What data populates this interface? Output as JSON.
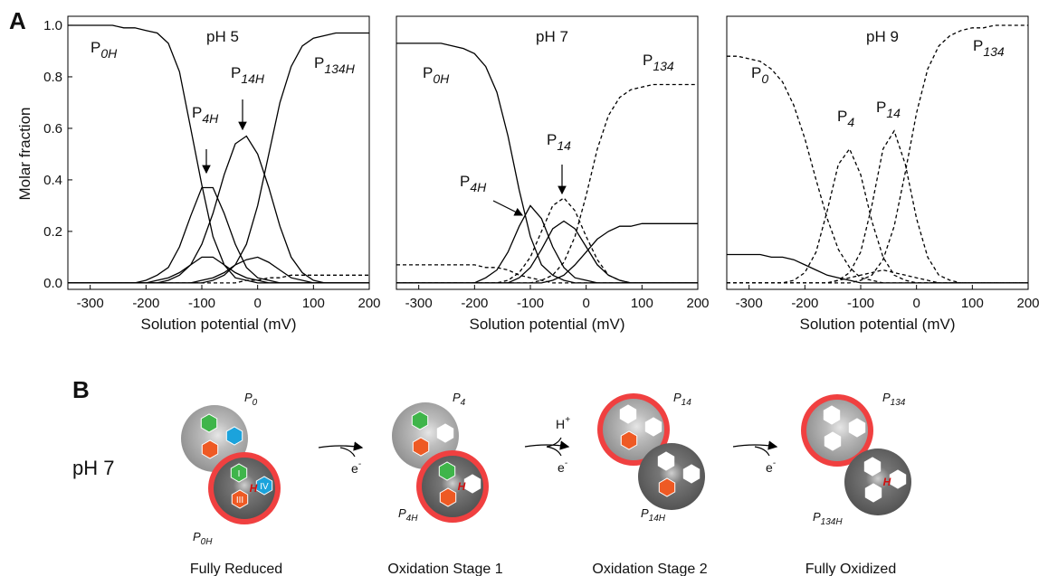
{
  "panel_label": "A",
  "chart_data": [
    {
      "type": "line",
      "title": "pH 5",
      "x_label": "Solution potential (mV)",
      "y_label": "Molar fraction",
      "xlim": [
        -340,
        200
      ],
      "ylim": [
        -0.025,
        1.035
      ],
      "xticks": [
        -300,
        -200,
        -100,
        0,
        100,
        200
      ],
      "yticks": [
        {
          "value": 0,
          "label": "0.0"
        },
        0.2,
        0.4,
        0.6,
        0.8,
        {
          "value": 1,
          "label": "1.0"
        }
      ],
      "x": [
        -340,
        -320,
        -300,
        -280,
        -260,
        -240,
        -220,
        -200,
        -180,
        -160,
        -140,
        -120,
        -100,
        -80,
        -60,
        -40,
        -20,
        0,
        20,
        40,
        60,
        80,
        100,
        120,
        140,
        160,
        180,
        200
      ],
      "series": [
        {
          "name": "P0H",
          "color": "#000",
          "style": "solid",
          "values": [
            1,
            1,
            1,
            1,
            1,
            0.99,
            0.99,
            0.98,
            0.97,
            0.93,
            0.82,
            0.6,
            0.38,
            0.18,
            0.07,
            0.02,
            0.01,
            0,
            0,
            0,
            0,
            0,
            0,
            0,
            0,
            0,
            0,
            0
          ]
        },
        {
          "name": "P4H",
          "color": "#000",
          "style": "solid",
          "values": [
            0,
            0,
            0,
            0,
            0,
            0,
            0,
            0.01,
            0.03,
            0.06,
            0.14,
            0.26,
            0.37,
            0.37,
            0.27,
            0.15,
            0.06,
            0.02,
            0.01,
            0,
            0,
            0,
            0,
            0,
            0,
            0,
            0,
            0
          ]
        },
        {
          "name": "P14H",
          "color": "#000",
          "style": "solid",
          "values": [
            0,
            0,
            0,
            0,
            0,
            0,
            0,
            0,
            0,
            0.01,
            0.03,
            0.07,
            0.15,
            0.27,
            0.42,
            0.54,
            0.57,
            0.5,
            0.37,
            0.22,
            0.1,
            0.04,
            0.01,
            0,
            0,
            0,
            0,
            0
          ]
        },
        {
          "name": "P134H",
          "color": "#000",
          "style": "solid",
          "values": [
            0,
            0,
            0,
            0,
            0,
            0,
            0,
            0,
            0,
            0,
            0,
            0,
            0,
            0.01,
            0.03,
            0.07,
            0.15,
            0.3,
            0.5,
            0.7,
            0.84,
            0.92,
            0.95,
            0.96,
            0.97,
            0.97,
            0.97,
            0.97
          ]
        },
        {
          "color": "#000",
          "style": "solid",
          "values": [
            0,
            0,
            0,
            0,
            0,
            0,
            0,
            0,
            0.01,
            0.02,
            0.04,
            0.07,
            0.1,
            0.1,
            0.07,
            0.04,
            0.02,
            0.01,
            0,
            0,
            0,
            0,
            0,
            0,
            0,
            0,
            0,
            0
          ]
        },
        {
          "color": "#000",
          "style": "solid",
          "values": [
            0,
            0,
            0,
            0,
            0,
            0,
            0,
            0,
            0,
            0,
            0,
            0,
            0.01,
            0.02,
            0.04,
            0.07,
            0.09,
            0.1,
            0.08,
            0.05,
            0.02,
            0.01,
            0,
            0,
            0,
            0,
            0,
            0
          ]
        },
        {
          "color": "#000",
          "style": "dashed",
          "values": [
            0,
            0,
            0,
            0,
            0,
            0,
            0,
            0,
            0,
            0,
            0,
            0,
            0,
            0,
            0,
            0,
            0.01,
            0.01,
            0.02,
            0.02,
            0.03,
            0.03,
            0.03,
            0.03,
            0.03,
            0.03,
            0.03,
            0.03
          ]
        }
      ]
    },
    {
      "type": "line",
      "title": "pH 7",
      "x_label": "Solution potential (mV)",
      "xlim": [
        -340,
        200
      ],
      "ylim": [
        -0.025,
        1.035
      ],
      "xticks": [
        -300,
        -200,
        -100,
        0,
        100,
        200
      ],
      "x": [
        -340,
        -320,
        -300,
        -280,
        -260,
        -240,
        -220,
        -200,
        -180,
        -160,
        -140,
        -120,
        -100,
        -80,
        -60,
        -40,
        -20,
        0,
        20,
        40,
        60,
        80,
        100,
        120,
        140,
        160,
        180,
        200
      ],
      "series": [
        {
          "name": "P0H",
          "color": "#000",
          "style": "solid",
          "values": [
            0.93,
            0.93,
            0.93,
            0.93,
            0.93,
            0.92,
            0.91,
            0.89,
            0.84,
            0.74,
            0.57,
            0.36,
            0.18,
            0.07,
            0.03,
            0.01,
            0,
            0,
            0,
            0,
            0,
            0,
            0,
            0,
            0,
            0,
            0,
            0
          ]
        },
        {
          "name": "P4H",
          "color": "#000",
          "style": "solid",
          "values": [
            0,
            0,
            0,
            0,
            0,
            0,
            0,
            0,
            0.02,
            0.05,
            0.12,
            0.22,
            0.3,
            0.25,
            0.14,
            0.06,
            0.02,
            0.01,
            0,
            0,
            0,
            0,
            0,
            0,
            0,
            0,
            0,
            0
          ]
        },
        {
          "name": "P14",
          "color": "#000",
          "style": "dashed",
          "values": [
            0,
            0,
            0,
            0,
            0,
            0,
            0,
            0,
            0,
            0,
            0.01,
            0.04,
            0.1,
            0.2,
            0.3,
            0.33,
            0.28,
            0.18,
            0.09,
            0.03,
            0.01,
            0,
            0,
            0,
            0,
            0,
            0,
            0
          ]
        },
        {
          "name": "P134",
          "color": "#000",
          "style": "dashed",
          "values": [
            0,
            0,
            0,
            0,
            0,
            0,
            0,
            0,
            0,
            0,
            0,
            0,
            0,
            0.01,
            0.03,
            0.08,
            0.18,
            0.34,
            0.52,
            0.65,
            0.72,
            0.75,
            0.76,
            0.77,
            0.77,
            0.77,
            0.77,
            0.77
          ]
        },
        {
          "color": "#000",
          "style": "solid",
          "values": [
            0,
            0,
            0,
            0,
            0,
            0,
            0,
            0,
            0,
            0,
            0,
            0.02,
            0.06,
            0.13,
            0.21,
            0.24,
            0.21,
            0.14,
            0.07,
            0.03,
            0.01,
            0,
            0,
            0,
            0,
            0,
            0,
            0
          ]
        },
        {
          "color": "#000",
          "style": "solid",
          "values": [
            0,
            0,
            0,
            0,
            0,
            0,
            0,
            0,
            0,
            0,
            0,
            0,
            0,
            0,
            0.01,
            0.03,
            0.07,
            0.12,
            0.17,
            0.2,
            0.22,
            0.22,
            0.23,
            0.23,
            0.23,
            0.23,
            0.23,
            0.23
          ]
        },
        {
          "color": "#000",
          "style": "dashed",
          "values": [
            0.07,
            0.07,
            0.07,
            0.07,
            0.07,
            0.07,
            0.07,
            0.07,
            0.06,
            0.06,
            0.05,
            0.03,
            0.02,
            0.01,
            0,
            0,
            0,
            0,
            0,
            0,
            0,
            0,
            0,
            0,
            0,
            0,
            0,
            0
          ]
        }
      ]
    },
    {
      "type": "line",
      "title": "pH 9",
      "x_label": "Solution potential (mV)",
      "xlim": [
        -340,
        200
      ],
      "ylim": [
        -0.025,
        1.035
      ],
      "xticks": [
        -300,
        -200,
        -100,
        0,
        100,
        200
      ],
      "x": [
        -340,
        -320,
        -300,
        -280,
        -260,
        -240,
        -220,
        -200,
        -180,
        -160,
        -140,
        -120,
        -100,
        -80,
        -60,
        -40,
        -20,
        0,
        20,
        40,
        60,
        80,
        100,
        120,
        140,
        160,
        180,
        200
      ],
      "series": [
        {
          "name": "P0",
          "color": "#000",
          "style": "dashed",
          "values": [
            0.88,
            0.88,
            0.87,
            0.86,
            0.83,
            0.78,
            0.69,
            0.56,
            0.4,
            0.25,
            0.13,
            0.06,
            0.02,
            0.01,
            0,
            0,
            0,
            0,
            0,
            0,
            0,
            0,
            0,
            0,
            0,
            0,
            0,
            0
          ]
        },
        {
          "name": "P4",
          "color": "#000",
          "style": "dashed",
          "values": [
            0,
            0,
            0,
            0,
            0,
            0,
            0.01,
            0.04,
            0.12,
            0.28,
            0.46,
            0.52,
            0.42,
            0.24,
            0.1,
            0.03,
            0.01,
            0,
            0,
            0,
            0,
            0,
            0,
            0,
            0,
            0,
            0,
            0
          ]
        },
        {
          "name": "P14",
          "color": "#000",
          "style": "dashed",
          "values": [
            0,
            0,
            0,
            0,
            0,
            0,
            0,
            0,
            0,
            0,
            0.01,
            0.04,
            0.12,
            0.3,
            0.52,
            0.59,
            0.46,
            0.25,
            0.1,
            0.03,
            0.01,
            0,
            0,
            0,
            0,
            0,
            0,
            0
          ]
        },
        {
          "name": "P134",
          "color": "#000",
          "style": "dashed",
          "values": [
            0,
            0,
            0,
            0,
            0,
            0,
            0,
            0,
            0,
            0,
            0,
            0,
            0.01,
            0.03,
            0.09,
            0.22,
            0.43,
            0.66,
            0.83,
            0.92,
            0.96,
            0.98,
            0.99,
            0.99,
            1,
            1,
            1,
            1
          ]
        },
        {
          "color": "#000",
          "style": "solid",
          "values": [
            0.11,
            0.11,
            0.11,
            0.11,
            0.1,
            0.1,
            0.09,
            0.07,
            0.05,
            0.03,
            0.02,
            0.01,
            0,
            0,
            0,
            0,
            0,
            0,
            0,
            0,
            0,
            0,
            0,
            0,
            0,
            0,
            0,
            0
          ]
        },
        {
          "color": "#000",
          "style": "dashed",
          "values": [
            0,
            0,
            0,
            0,
            0,
            0,
            0,
            0,
            0,
            0,
            0.01,
            0.02,
            0.03,
            0.04,
            0.05,
            0.04,
            0.03,
            0.02,
            0.01,
            0,
            0,
            0,
            0,
            0,
            0,
            0,
            0,
            0
          ]
        }
      ]
    }
  ],
  "diagram": {
    "label": "B",
    "condition": "pH 7",
    "stages": [
      {
        "caption": "Fully Reduced",
        "top": "P0",
        "bottom": "P0H"
      },
      {
        "caption": "Oxidation Stage 1",
        "top": "P4",
        "bottom": "P4H"
      },
      {
        "caption": "Oxidation Stage 2",
        "top": "P14",
        "bottom": "P14H"
      },
      {
        "caption": "Fully Oxidized",
        "top": "P134",
        "bottom": "P134H"
      }
    ],
    "arrows": [
      {
        "electron": "e-"
      },
      {
        "proton": "H+",
        "electron": "e-"
      },
      {
        "electron": "e-"
      }
    ],
    "hexagon_labels": [
      "I",
      "III",
      "IV"
    ],
    "core_label": "H"
  }
}
